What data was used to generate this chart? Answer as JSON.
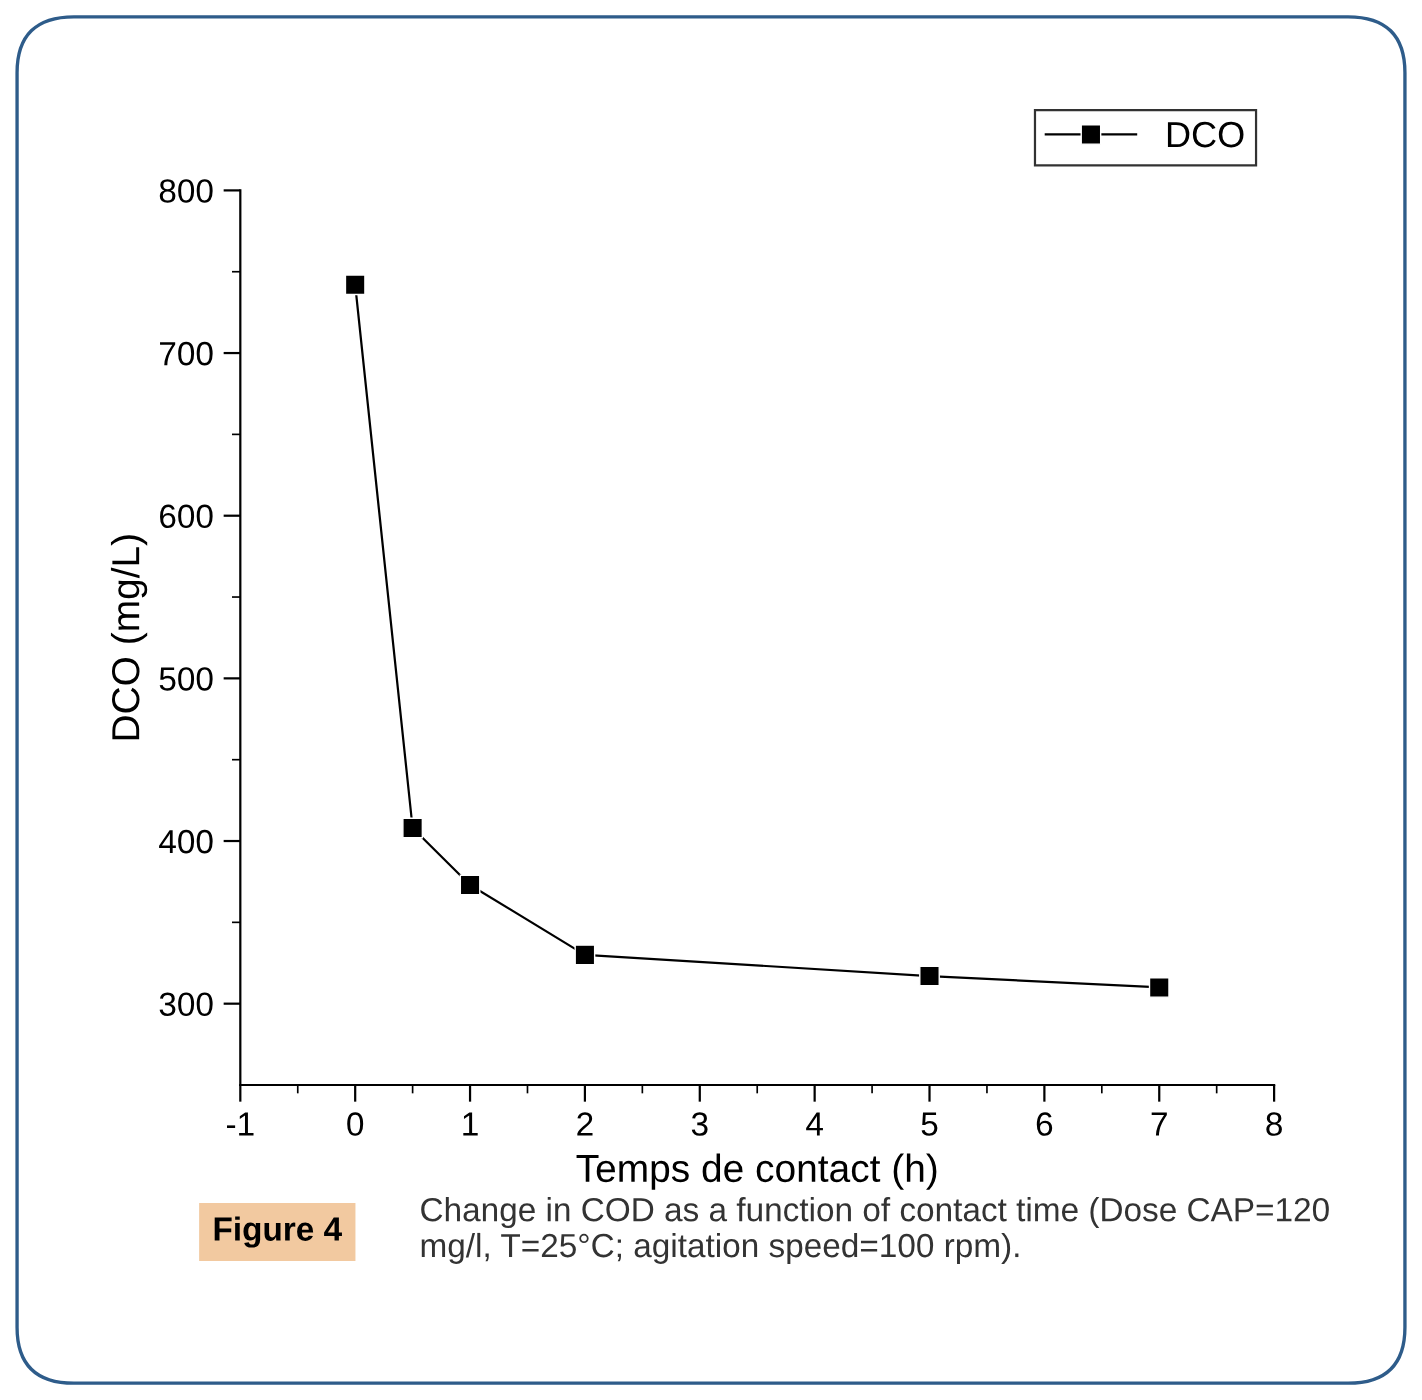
{
  "chart_data": {
    "type": "line",
    "xlabel": "Temps de contact (h)",
    "ylabel": "DCO (mg/L)",
    "x": [
      0,
      0.5,
      1,
      2,
      5,
      7
    ],
    "series": [
      {
        "name": "DCO",
        "color": "#000000",
        "values": [
          742,
          408,
          373,
          330,
          317,
          310
        ]
      }
    ],
    "xlim": [
      -1,
      8
    ],
    "ylim": [
      250,
      800
    ],
    "xticks": [
      -1,
      {
        "value": -0.5,
        "label": null
      },
      0,
      {
        "value": 0.5,
        "label": null
      },
      1,
      {
        "value": 1.5,
        "label": null
      },
      2,
      {
        "value": 2.5,
        "label": null
      },
      3,
      {
        "value": 3.5,
        "label": null
      },
      4,
      {
        "value": 4.5,
        "label": null
      },
      5,
      {
        "value": 5.5,
        "label": null
      },
      6,
      {
        "value": 6.5,
        "label": null
      },
      7,
      {
        "value": 7.5,
        "label": null
      },
      8
    ],
    "yticks": [
      300,
      {
        "value": 350,
        "label": null
      },
      400,
      {
        "value": 450,
        "label": null
      },
      500,
      {
        "value": 550,
        "label": null
      },
      600,
      {
        "value": 650,
        "label": null
      },
      700,
      {
        "value": 750,
        "label": null
      },
      800
    ],
    "marker": "square",
    "line_style": "solid",
    "legend": "top right",
    "grid": false,
    "annotations": [
      "Figure 4",
      "Change in COD as a function of contact time (Dose CAP=120 mg/l, T=25°C; agitation speed=100 rpm)."
    ]
  }
}
